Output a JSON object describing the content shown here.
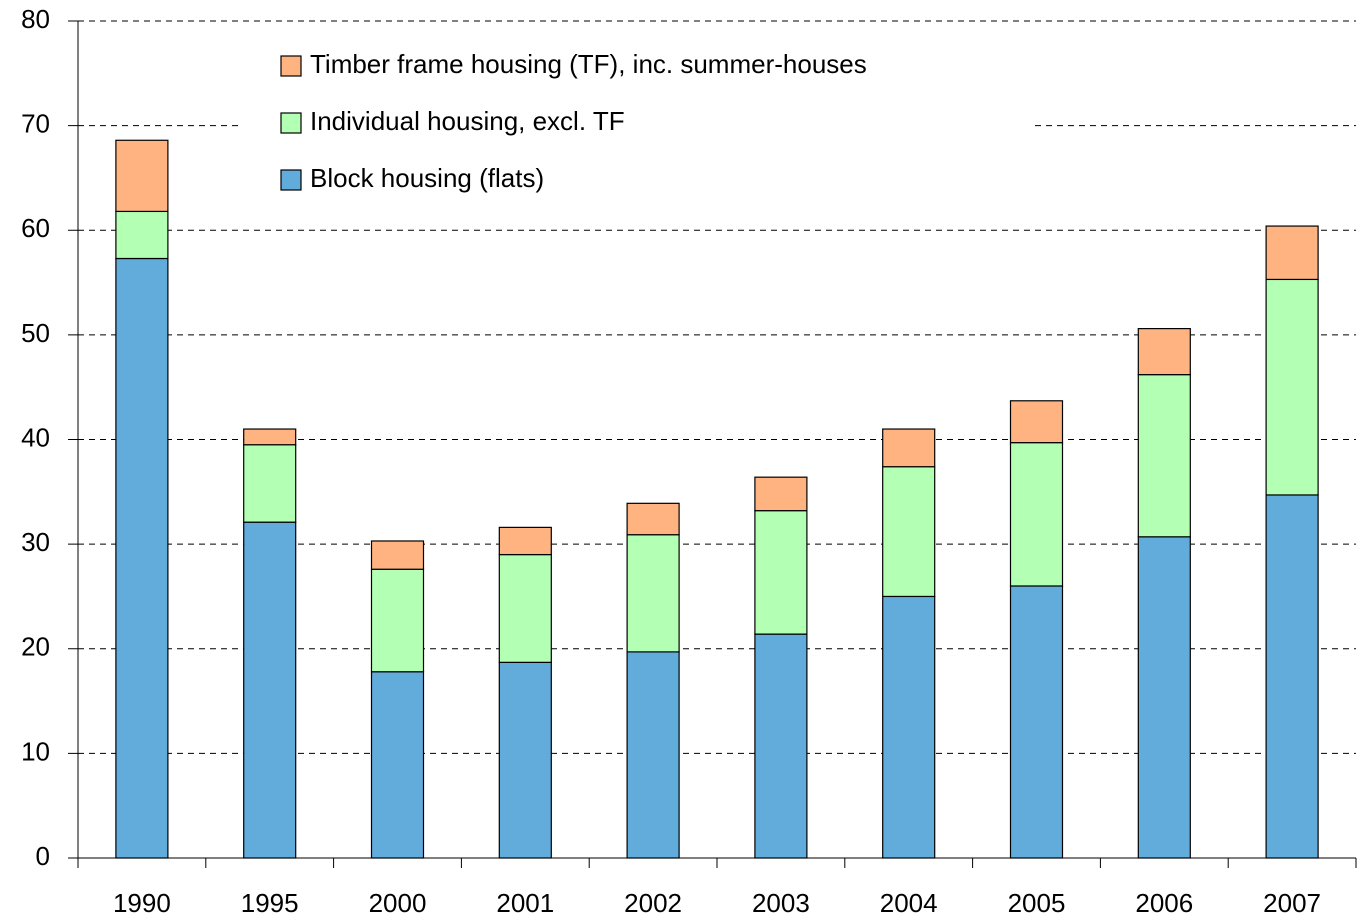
{
  "chart_data": {
    "type": "stacked_bar",
    "categories": [
      "1990",
      "1995",
      "2000",
      "2001",
      "2002",
      "2003",
      "2004",
      "2005",
      "2006",
      "2007"
    ],
    "series": [
      {
        "name": "Block housing (flats)",
        "color": "#62acdb",
        "values": [
          57.3,
          32.1,
          17.8,
          18.7,
          19.7,
          21.4,
          25.0,
          26.0,
          30.7,
          34.7
        ]
      },
      {
        "name": "Individual housing, excl. TF",
        "color": "#b3ffb3",
        "values": [
          4.5,
          7.4,
          9.8,
          10.3,
          11.2,
          11.8,
          12.4,
          13.7,
          15.5,
          20.6
        ]
      },
      {
        "name": "Timber frame housing (TF), inc. summer-houses",
        "color": "#ffb380",
        "values": [
          6.8,
          1.5,
          2.7,
          2.6,
          3.0,
          3.2,
          3.6,
          4.0,
          4.4,
          5.1
        ]
      }
    ],
    "ylim": [
      0,
      80
    ],
    "yticks": [
      0,
      10,
      20,
      30,
      40,
      50,
      60,
      70,
      80
    ],
    "grid": true,
    "legend": "top"
  }
}
